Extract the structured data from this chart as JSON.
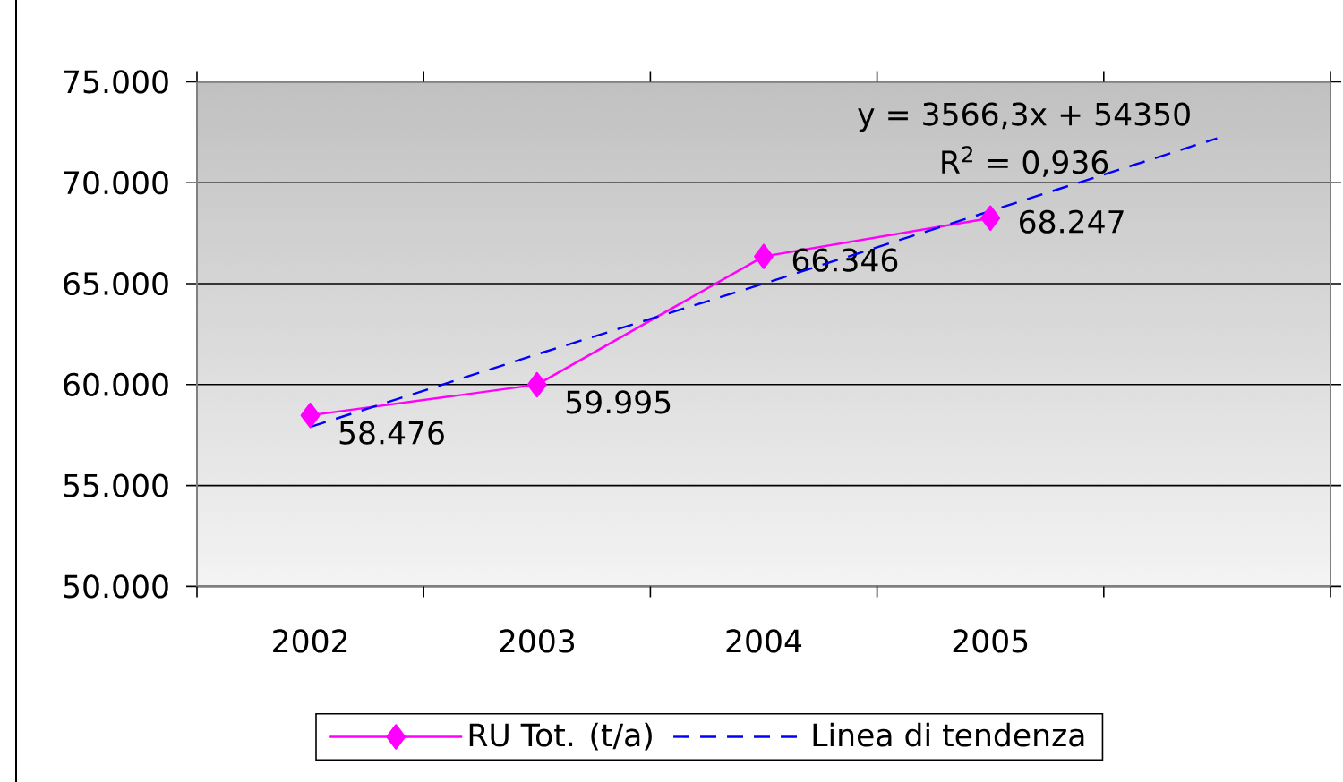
{
  "chart_data": {
    "type": "line",
    "categories": [
      "2002",
      "2003",
      "2004",
      "2005",
      null
    ],
    "series": [
      {
        "name": "RU Tot. (t/a)",
        "color": "#ff00ff",
        "marker": "diamond",
        "line_style": "solid",
        "values": [
          58476,
          59995,
          66346,
          68247,
          null
        ],
        "value_labels": [
          "58.476",
          "59.995",
          "66.346",
          "68.247",
          null
        ]
      },
      {
        "name": "Linea di tendenza",
        "color": "#0000ff",
        "marker": "none",
        "line_style": "dashed",
        "values": [
          57900,
          61500,
          65000,
          68600,
          72200
        ]
      }
    ],
    "ylim": [
      50000,
      75000
    ],
    "yticks": [
      {
        "value": 50000,
        "label": "50.000"
      },
      {
        "value": 55000,
        "label": "55.000"
      },
      {
        "value": 60000,
        "label": "60.000"
      },
      {
        "value": 65000,
        "label": "65.000"
      },
      {
        "value": 70000,
        "label": "70.000"
      },
      {
        "value": 75000,
        "label": "75.000"
      }
    ],
    "grid": "y",
    "legend": "bottom",
    "annotations": [
      "y = 3566,3x + 54350",
      "R$^{2}$ = 0,936"
    ]
  }
}
